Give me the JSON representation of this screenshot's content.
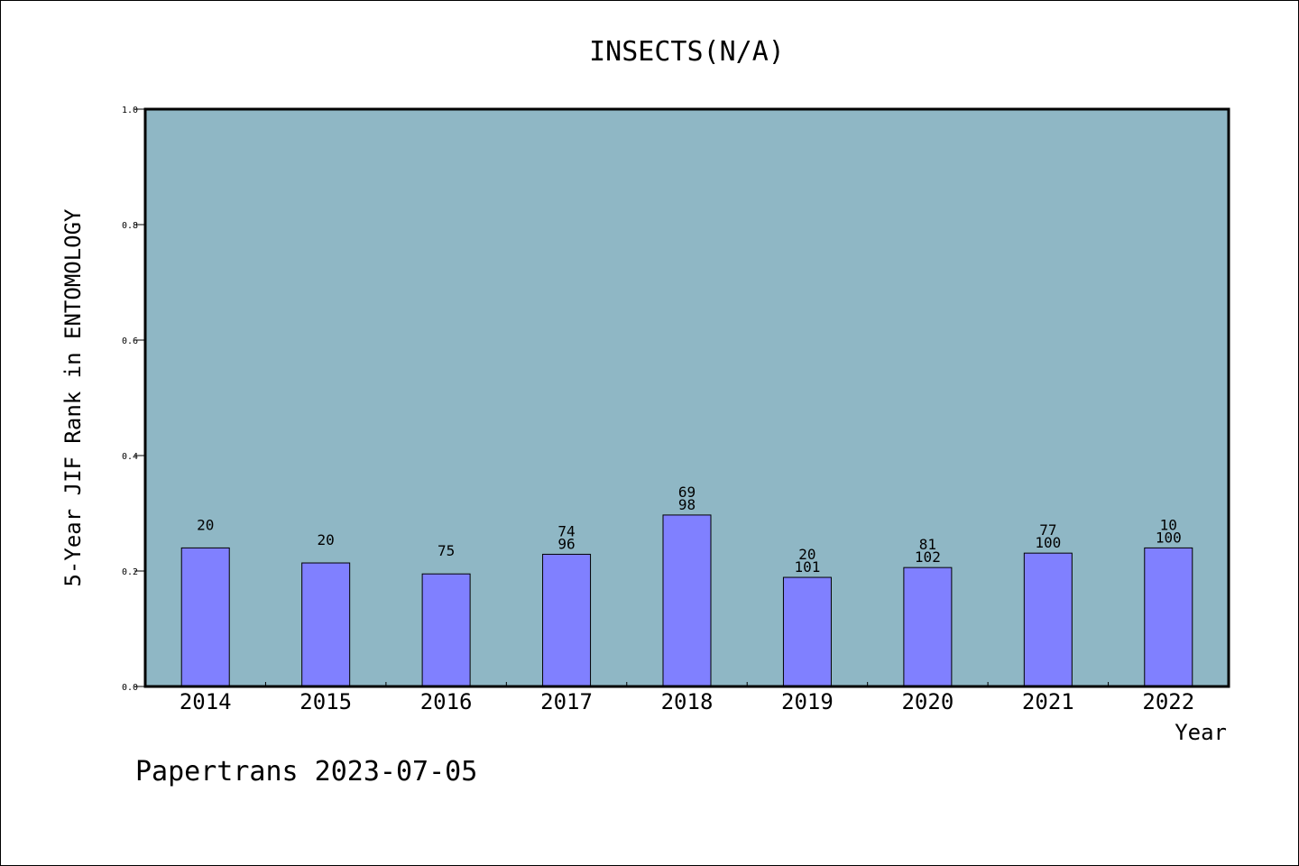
{
  "chart_data": {
    "type": "bar",
    "title": "INSECTS(N/A)",
    "xlabel": "Year",
    "ylabel": "5-Year JIF Rank in ENTOMOLOGY",
    "ylim": [
      0,
      1.0
    ],
    "yticks": [
      "0.0",
      "0.2",
      "0.4",
      "0.6",
      "0.8",
      "1.0"
    ],
    "grid": false,
    "categories": [
      "2014",
      "2015",
      "2016",
      "2017",
      "2018",
      "2019",
      "2020",
      "2021",
      "2022"
    ],
    "values": [
      0.24,
      0.214,
      0.195,
      0.229,
      0.297,
      0.189,
      0.206,
      0.231,
      0.24
    ],
    "labels": [
      [
        "20"
      ],
      [
        "20"
      ],
      [
        "75"
      ],
      [
        "74",
        "96"
      ],
      [
        "69",
        "98"
      ],
      [
        "20",
        "101"
      ],
      [
        "81",
        "102"
      ],
      [
        "77",
        "100"
      ],
      [
        "10",
        "100"
      ]
    ],
    "colors": {
      "plot_bg": "#8fb7c5",
      "bar": "#8080ff"
    }
  },
  "footer": "Papertrans 2023-07-05"
}
